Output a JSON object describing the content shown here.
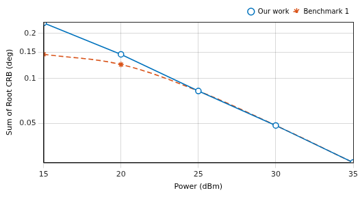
{
  "chart_data": {
    "type": "line",
    "x_label": "Power (dBm)",
    "y_label": "Sum of Root CRB (deg)",
    "x": [
      15,
      20,
      25,
      30,
      35
    ],
    "series": [
      {
        "name": "Our work",
        "color": "#0072bd",
        "marker": "circle",
        "line_style": "solid",
        "values": [
          0.235,
          0.145,
          0.0824,
          0.0485,
          0.0274
        ]
      },
      {
        "name": "Benchmark 1",
        "color": "#d95319",
        "marker": "star",
        "line_style": "dashed",
        "values": [
          0.145,
          0.124,
          0.0824,
          0.0485,
          0.0274
        ]
      }
    ],
    "xlim": [
      15,
      35
    ],
    "xticks": [
      15,
      20,
      25,
      30,
      35
    ],
    "ylim": [
      0.0274,
      0.239
    ],
    "yticks": [
      0.05,
      0.1,
      0.15,
      0.2
    ],
    "log": "y",
    "grid": true,
    "legend": "upper right"
  }
}
